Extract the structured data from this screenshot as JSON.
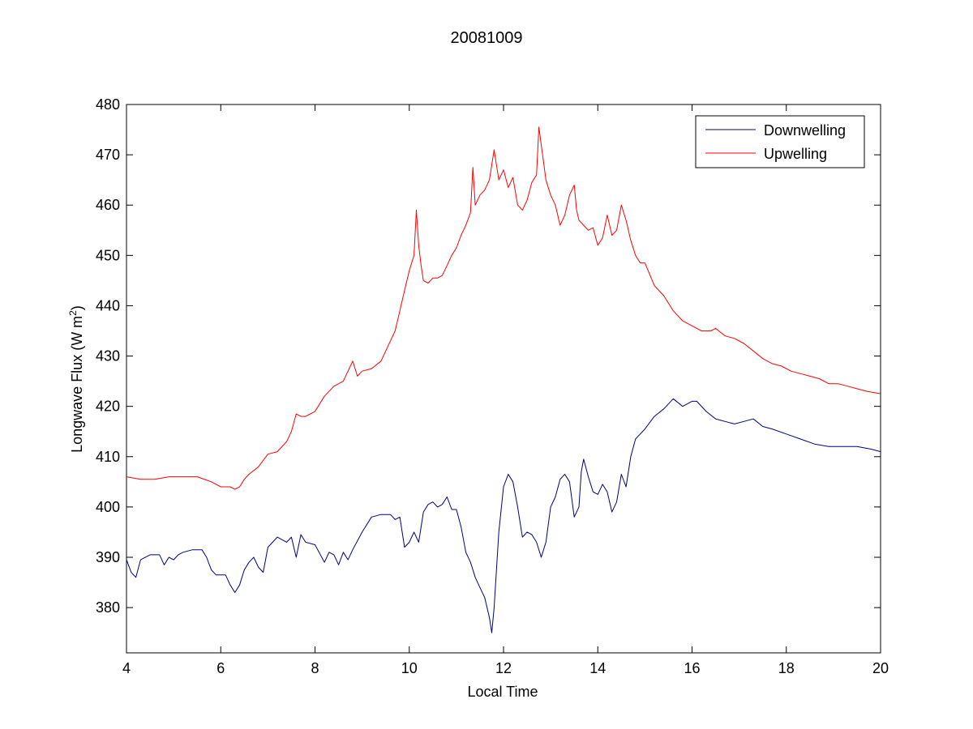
{
  "chart_data": {
    "type": "line",
    "title": "20081009",
    "xlabel": "Local Time",
    "ylabel_main": "Longwave Flux (W m",
    "ylabel_sup": "2",
    "ylabel_end": ")",
    "xlim": [
      4,
      20
    ],
    "ylim": [
      371,
      480
    ],
    "xticks": [
      "4",
      "6",
      "8",
      "10",
      "12",
      "14",
      "16",
      "18",
      "20"
    ],
    "yticks": [
      "380",
      "390",
      "400",
      "410",
      "420",
      "430",
      "440",
      "450",
      "460",
      "470",
      "480"
    ],
    "grid": false,
    "legend_position": "top-right",
    "series": [
      {
        "name": "Downwelling",
        "color": "#000080",
        "x": [
          4.0,
          4.1,
          4.2,
          4.3,
          4.5,
          4.7,
          4.8,
          4.9,
          5.0,
          5.1,
          5.2,
          5.4,
          5.6,
          5.7,
          5.8,
          5.9,
          6.0,
          6.1,
          6.2,
          6.3,
          6.4,
          6.5,
          6.6,
          6.7,
          6.8,
          6.9,
          7.0,
          7.2,
          7.4,
          7.5,
          7.6,
          7.7,
          7.8,
          8.0,
          8.2,
          8.3,
          8.4,
          8.5,
          8.6,
          8.7,
          8.8,
          9.0,
          9.2,
          9.4,
          9.6,
          9.7,
          9.8,
          9.9,
          10.0,
          10.1,
          10.2,
          10.3,
          10.4,
          10.5,
          10.6,
          10.7,
          10.8,
          10.9,
          11.0,
          11.1,
          11.2,
          11.3,
          11.4,
          11.5,
          11.6,
          11.7,
          11.75,
          11.8,
          11.9,
          12.0,
          12.1,
          12.2,
          12.3,
          12.4,
          12.5,
          12.6,
          12.7,
          12.8,
          12.9,
          13.0,
          13.1,
          13.2,
          13.3,
          13.4,
          13.5,
          13.6,
          13.65,
          13.7,
          13.8,
          13.9,
          14.0,
          14.1,
          14.2,
          14.3,
          14.4,
          14.5,
          14.6,
          14.7,
          14.8,
          14.9,
          15.0,
          15.2,
          15.4,
          15.6,
          15.8,
          16.0,
          16.1,
          16.3,
          16.5,
          16.7,
          16.9,
          17.1,
          17.3,
          17.5,
          17.7,
          18.0,
          18.3,
          18.6,
          18.9,
          19.2,
          19.5,
          19.8,
          20.0
        ],
        "y": [
          389.5,
          387.0,
          386.0,
          389.5,
          390.5,
          390.5,
          388.5,
          390.0,
          389.5,
          390.5,
          391.0,
          391.5,
          391.5,
          390.0,
          387.5,
          386.5,
          386.5,
          386.5,
          384.5,
          383.0,
          384.5,
          387.5,
          389.0,
          390.0,
          388.0,
          387.0,
          392.0,
          394.0,
          393.0,
          394.0,
          390.0,
          394.5,
          393.0,
          392.5,
          389.0,
          391.0,
          390.5,
          388.5,
          391.0,
          389.5,
          391.5,
          395.0,
          398.0,
          398.5,
          398.5,
          397.5,
          398.0,
          392.0,
          393.0,
          395.0,
          393.0,
          399.0,
          400.5,
          401.0,
          400.0,
          400.5,
          402.0,
          399.5,
          399.5,
          396.0,
          391.0,
          389.0,
          386.0,
          384.0,
          382.0,
          378.0,
          375.0,
          380.0,
          395.0,
          404.0,
          406.5,
          405.0,
          400.0,
          394.0,
          395.0,
          394.5,
          393.0,
          390.0,
          393.0,
          400.0,
          402.0,
          405.5,
          406.5,
          405.0,
          398.0,
          400.0,
          407.0,
          409.5,
          406.0,
          403.0,
          402.5,
          404.5,
          403.0,
          399.0,
          401.0,
          406.5,
          404.0,
          410.0,
          413.5,
          414.5,
          415.5,
          418.0,
          419.5,
          421.5,
          420.0,
          421.0,
          421.0,
          419.0,
          417.5,
          417.0,
          416.5,
          417.0,
          417.5,
          416.0,
          415.5,
          414.5,
          413.5,
          412.5,
          412.0,
          412.0,
          412.0,
          411.5,
          411.0
        ]
      },
      {
        "name": "Upwelling",
        "color": "#ff0000",
        "x": [
          4.0,
          4.3,
          4.6,
          4.9,
          5.2,
          5.5,
          5.8,
          6.0,
          6.2,
          6.3,
          6.4,
          6.5,
          6.6,
          6.8,
          7.0,
          7.2,
          7.4,
          7.5,
          7.6,
          7.7,
          7.8,
          8.0,
          8.2,
          8.4,
          8.6,
          8.8,
          8.9,
          9.0,
          9.2,
          9.4,
          9.6,
          9.7,
          9.8,
          9.9,
          10.0,
          10.1,
          10.15,
          10.2,
          10.25,
          10.3,
          10.4,
          10.5,
          10.6,
          10.7,
          10.8,
          10.9,
          11.0,
          11.1,
          11.2,
          11.3,
          11.35,
          11.4,
          11.5,
          11.6,
          11.7,
          11.8,
          11.9,
          12.0,
          12.1,
          12.2,
          12.3,
          12.4,
          12.5,
          12.6,
          12.7,
          12.75,
          12.8,
          12.9,
          13.0,
          13.1,
          13.2,
          13.3,
          13.4,
          13.5,
          13.55,
          13.6,
          13.7,
          13.8,
          13.9,
          14.0,
          14.1,
          14.2,
          14.3,
          14.4,
          14.5,
          14.6,
          14.7,
          14.8,
          14.9,
          15.0,
          15.2,
          15.4,
          15.6,
          15.8,
          16.0,
          16.2,
          16.4,
          16.5,
          16.7,
          16.9,
          17.1,
          17.3,
          17.5,
          17.7,
          17.9,
          18.1,
          18.3,
          18.5,
          18.7,
          18.9,
          19.1,
          19.3,
          19.5,
          19.7,
          20.0
        ],
        "y": [
          406.0,
          405.5,
          405.5,
          406.0,
          406.0,
          406.0,
          405.0,
          404.0,
          404.0,
          403.5,
          404.0,
          405.5,
          406.5,
          408.0,
          410.5,
          411.0,
          413.0,
          415.0,
          418.5,
          418.0,
          418.0,
          419.0,
          422.0,
          424.0,
          425.0,
          429.0,
          426.0,
          427.0,
          427.5,
          429.0,
          433.0,
          435.0,
          439.0,
          443.0,
          447.0,
          450.0,
          459.0,
          452.0,
          448.0,
          445.0,
          444.5,
          445.5,
          445.5,
          446.0,
          448.0,
          450.0,
          451.5,
          454.0,
          456.0,
          458.5,
          467.5,
          460.0,
          462.0,
          463.0,
          465.0,
          471.0,
          465.0,
          467.0,
          463.5,
          465.5,
          460.0,
          459.0,
          461.0,
          464.5,
          466.0,
          475.5,
          472.0,
          465.0,
          462.0,
          460.0,
          456.0,
          458.0,
          462.0,
          464.0,
          459.0,
          457.0,
          456.0,
          455.0,
          455.5,
          452.0,
          453.5,
          458.0,
          454.0,
          455.0,
          460.0,
          457.0,
          453.0,
          450.0,
          448.5,
          448.5,
          444.0,
          442.0,
          439.0,
          437.0,
          436.0,
          435.0,
          435.0,
          435.5,
          434.0,
          433.5,
          432.5,
          431.0,
          429.5,
          428.5,
          428.0,
          427.0,
          426.5,
          426.0,
          425.5,
          424.5,
          424.5,
          424.0,
          423.5,
          423.0,
          422.5
        ]
      }
    ]
  }
}
